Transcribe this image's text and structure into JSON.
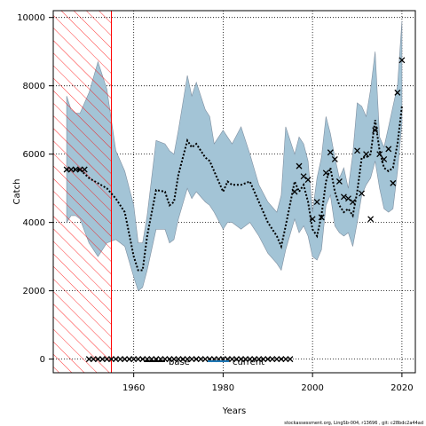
{
  "chart_data": {
    "type": "line",
    "xlabel": "Years",
    "ylabel": "Catch",
    "xlim": [
      1942,
      2023
    ],
    "ylim": [
      -400,
      10200
    ],
    "x_ticks": [
      1960,
      1980,
      2000,
      2020
    ],
    "y_ticks": [
      0,
      2000,
      4000,
      6000,
      8000,
      10000
    ],
    "grid": true,
    "historical_period": [
      1942,
      1955
    ],
    "band": {
      "x": [
        1945,
        1946,
        1947,
        1948,
        1950,
        1952,
        1954,
        1956,
        1958,
        1960,
        1961,
        1962,
        1963,
        1965,
        1967,
        1968,
        1969,
        1970,
        1972,
        1973,
        1974,
        1976,
        1977,
        1978,
        1980,
        1981,
        1982,
        1984,
        1986,
        1988,
        1990,
        1992,
        1993,
        1994,
        1996,
        1997,
        1998,
        1999,
        2000,
        2001,
        2002,
        2003,
        2004,
        2005,
        2006,
        2007,
        2008,
        2009,
        2010,
        2011,
        2012,
        2013,
        2014,
        2015,
        2016,
        2017,
        2018,
        2019,
        2020
      ],
      "upper": [
        7700,
        7300,
        7200,
        7200,
        7800,
        8700,
        7900,
        6100,
        5500,
        4500,
        3400,
        3400,
        4200,
        6400,
        6300,
        6100,
        6000,
        6700,
        8300,
        7700,
        8100,
        7300,
        7100,
        6300,
        6700,
        6500,
        6300,
        6800,
        6000,
        5100,
        4600,
        4300,
        4800,
        6800,
        6000,
        6500,
        6300,
        5800,
        4300,
        5300,
        5900,
        7100,
        6600,
        5900,
        5300,
        5600,
        5000,
        6000,
        7500,
        7400,
        7100,
        7900,
        9000,
        6500,
        6200,
        6800,
        7400,
        8000,
        9900
      ],
      "lower": [
        4000,
        4200,
        4200,
        4100,
        3400,
        3000,
        3400,
        3500,
        3300,
        2400,
        2000,
        2100,
        2600,
        3800,
        3800,
        3400,
        3500,
        4100,
        5000,
        4700,
        4900,
        4600,
        4500,
        4300,
        3800,
        4000,
        4000,
        3800,
        4000,
        3600,
        3100,
        2800,
        2600,
        3200,
        4100,
        3700,
        3900,
        3600,
        3000,
        2900,
        3200,
        4500,
        4800,
        3900,
        3700,
        3600,
        3700,
        3300,
        4000,
        4800,
        5100,
        5300,
        5800,
        5000,
        4400,
        4300,
        4400,
        5500,
        6900
      ]
    },
    "series": [
      {
        "name": "current",
        "x": [
          1945,
          1948,
          1950,
          1952,
          1954,
          1956,
          1958,
          1960,
          1961,
          1962,
          1963,
          1965,
          1967,
          1968,
          1969,
          1970,
          1972,
          1973,
          1974,
          1976,
          1977,
          1978,
          1980,
          1981,
          1982,
          1984,
          1986,
          1988,
          1990,
          1992,
          1993,
          1994,
          1996,
          1997,
          1998,
          1999,
          2000,
          2001,
          2002,
          2003,
          2004,
          2005,
          2006,
          2007,
          2008,
          2009,
          2010,
          2011,
          2012,
          2013,
          2014,
          2015,
          2016,
          2017,
          2018,
          2019,
          2020
        ],
        "y": [
          5550,
          5550,
          5300,
          5150,
          5000,
          4700,
          4300,
          3000,
          2600,
          2600,
          3600,
          4950,
          4900,
          4500,
          4600,
          5400,
          6400,
          6200,
          6300,
          5900,
          5800,
          5500,
          4900,
          5200,
          5100,
          5100,
          5200,
          4600,
          4000,
          3600,
          3300,
          3900,
          5200,
          4900,
          5100,
          4600,
          3800,
          3600,
          4200,
          5200,
          5600,
          4900,
          4500,
          4300,
          4400,
          4200,
          4900,
          5900,
          5900,
          6000,
          7000,
          6100,
          5600,
          5500,
          5600,
          6300,
          7400
        ]
      }
    ],
    "base_points": {
      "x": [
        1945,
        1946,
        1947,
        1948,
        1949,
        1950,
        1951,
        1952,
        1953,
        1954,
        1955,
        1956,
        1957,
        1958,
        1959,
        1960,
        1961,
        1962,
        1963,
        1964,
        1965,
        1966,
        1967,
        1968,
        1969,
        1970,
        1971,
        1972,
        1973,
        1974,
        1975,
        1976,
        1977,
        1978,
        1979,
        1980,
        1981,
        1982,
        1983,
        1984,
        1985,
        1986,
        1987,
        1988,
        1989,
        1990,
        1991,
        1992,
        1993,
        1994,
        1995
      ],
      "y": [
        5550,
        5550,
        5550,
        5550,
        5550,
        0,
        0,
        0,
        0,
        0,
        0,
        0,
        0,
        0,
        0,
        0,
        0,
        0,
        0,
        0,
        0,
        0,
        0,
        0,
        0,
        0,
        0,
        0,
        0,
        0,
        0,
        0,
        0,
        0,
        0,
        0,
        0,
        0,
        0,
        0,
        0,
        0,
        0,
        0,
        0,
        0,
        0,
        0,
        0,
        0,
        0
      ]
    },
    "observed_points": {
      "x": [
        1996,
        1997,
        1998,
        1999,
        2000,
        2001,
        2002,
        2003,
        2004,
        2005,
        2006,
        2007,
        2008,
        2009,
        2010,
        2011,
        2012,
        2013,
        2014,
        2015,
        2016,
        2017,
        2018,
        2019,
        2020
      ],
      "y": [
        4900,
        5650,
        5350,
        5250,
        4100,
        4600,
        4150,
        5450,
        6050,
        5850,
        5200,
        4750,
        4700,
        4600,
        6100,
        4850,
        6000,
        4100,
        6700,
        6000,
        5850,
        6150,
        5150,
        7800,
        8750
      ]
    },
    "legend": [
      {
        "label": "base",
        "color": "#000000"
      },
      {
        "label": "current",
        "color": "#1f77b4"
      }
    ],
    "colors": {
      "band": "#a3c4d6",
      "band_edge": "#7f8fa0",
      "line": "#000000",
      "hatch": "#ff0000"
    },
    "footnote": "stockassessment.org, LingSb-004, r13696 , git: c28bdc2a44ad"
  }
}
